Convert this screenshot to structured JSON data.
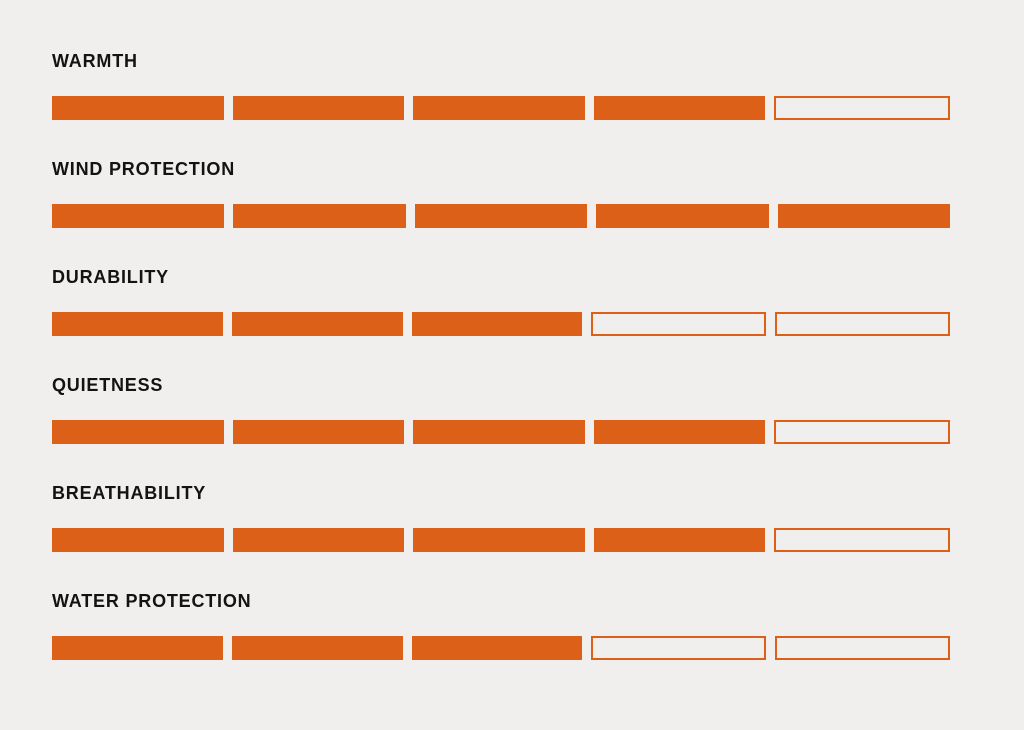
{
  "page": {
    "background_color": "#F0EFED"
  },
  "colors": {
    "accent_orange": "#DC6018",
    "label_text": "#131313",
    "empty_segment_fill": "#F0EFED"
  },
  "chart_data": {
    "type": "bar",
    "subtype": "segmented-rating-bars",
    "title": "",
    "categories": [
      "WARMTH",
      "WIND PROTECTION",
      "DURABILITY",
      "QUIETNESS",
      "BREATHABILITY",
      "WATER PROTECTION"
    ],
    "values": [
      4,
      5,
      3,
      4,
      4,
      3
    ],
    "max_value": 5,
    "segments_per_bar": 5,
    "orientation": "horizontal",
    "legend_position": "none",
    "grid": false,
    "xlabel": "",
    "ylabel": ""
  }
}
